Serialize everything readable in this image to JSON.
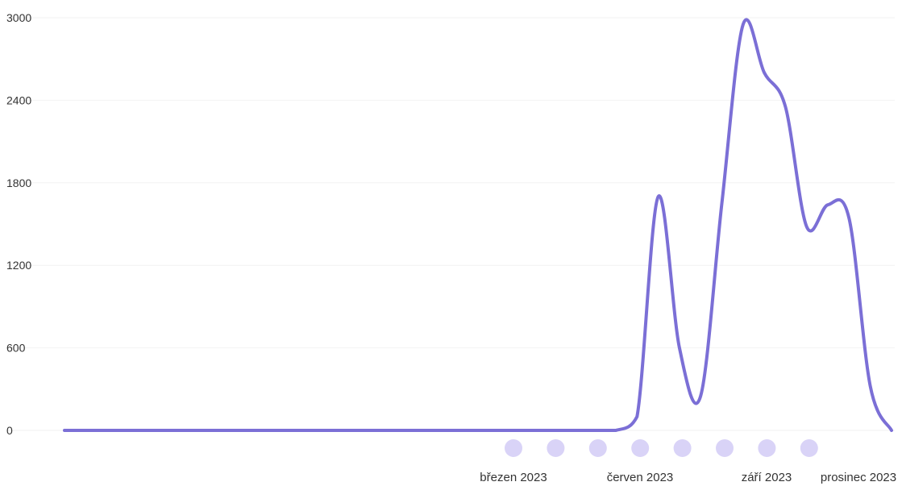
{
  "chart_data": {
    "type": "line",
    "ylim": [
      0,
      3000
    ],
    "y_ticks": [
      "0",
      "600",
      "1200",
      "1800",
      "2400",
      "3000"
    ],
    "x_labels": [
      "březen 2023",
      "červen 2023",
      "září 2023",
      "prosinec 2023"
    ],
    "grid": "horizontal",
    "line_color": "#7b6fd6",
    "marker_color": "#d9d3f7",
    "series": [
      {
        "values": [
          0,
          0,
          0,
          0,
          0,
          0,
          0,
          0,
          0,
          0,
          0,
          0,
          0,
          0,
          0,
          0,
          0,
          0,
          0,
          0,
          0,
          0,
          0,
          0,
          0,
          0,
          0,
          100,
          1700,
          600,
          250,
          1650,
          2950,
          2600,
          2350,
          1480,
          1640,
          1540,
          320,
          0
        ]
      }
    ]
  }
}
